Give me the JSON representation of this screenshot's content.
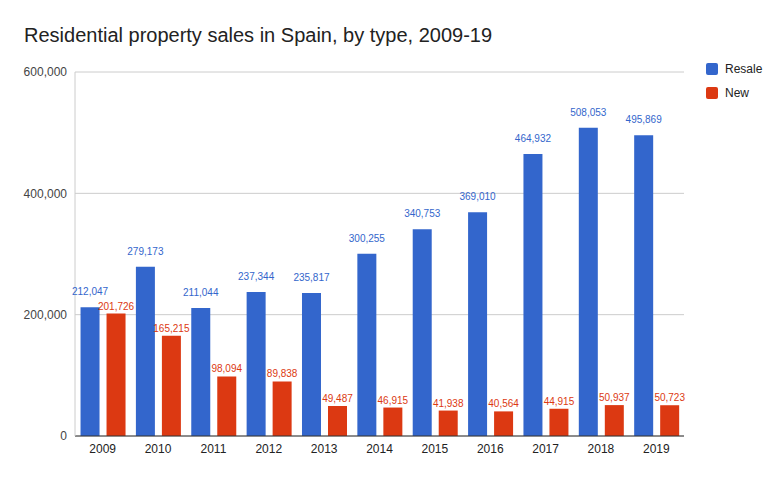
{
  "chart_data": {
    "type": "bar",
    "title": "Residential property sales in Spain, by type, 2009-19",
    "categories": [
      "2009",
      "2010",
      "2011",
      "2012",
      "2013",
      "2014",
      "2015",
      "2016",
      "2017",
      "2018",
      "2019"
    ],
    "series": [
      {
        "name": "Resale",
        "color": "#3366cc",
        "values": [
          212047,
          279173,
          211044,
          237344,
          235817,
          300255,
          340753,
          369010,
          464932,
          508053,
          495869
        ],
        "value_labels": [
          "212,047",
          "279,173",
          "211,044",
          "237,344",
          "235,817",
          "300,255",
          "340,753",
          "369,010",
          "464,932",
          "508,053",
          "495,869"
        ]
      },
      {
        "name": "New",
        "color": "#dc3912",
        "values": [
          201726,
          165215,
          98094,
          89838,
          49487,
          46915,
          41938,
          40564,
          44915,
          50937,
          50723
        ],
        "value_labels": [
          "201,726",
          "165,215",
          "98,094",
          "89,838",
          "49,487",
          "46,915",
          "41,938",
          "40,564",
          "44,915",
          "50,937",
          "50,723"
        ]
      }
    ],
    "ylim": [
      0,
      600000
    ],
    "yticks": [
      0,
      {
        "value": 200000,
        "label": "200,000"
      },
      {
        "value": 400000,
        "label": "400,000"
      },
      {
        "value": 600000,
        "label": "600,000"
      }
    ],
    "grid": true,
    "legend": "top-right",
    "data_labels": true
  }
}
